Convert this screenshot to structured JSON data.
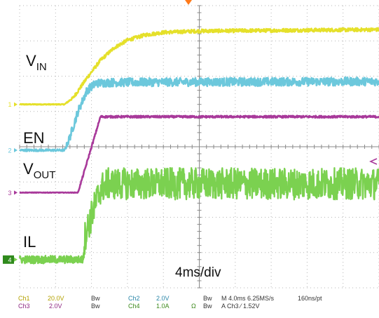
{
  "chart_data": {
    "type": "line",
    "title": "",
    "xlabel": "",
    "ylabel": "",
    "grid": true,
    "timebase_label": "4ms/div",
    "x_unit": "ms",
    "xlim": [
      0,
      40
    ],
    "ylim": [
      -4,
      4
    ],
    "y_unit": "div",
    "series": [
      {
        "name": "V",
        "name_sub": "IN",
        "channel_marker": "1",
        "color": "#e5e02a",
        "noise": 0.05,
        "ground_div": 1.2,
        "x": [
          0,
          5.0,
          6.0,
          7.5,
          9.0,
          10.5,
          12.0,
          14.0,
          16.0,
          20.0,
          30.0,
          40.0
        ],
        "y": [
          1.2,
          1.2,
          1.4,
          1.95,
          2.45,
          2.8,
          3.02,
          3.17,
          3.24,
          3.28,
          3.3,
          3.32
        ]
      },
      {
        "name": "EN",
        "channel_marker": "2",
        "color": "#6cc8dc",
        "noise": 0.12,
        "ground_div": -0.1,
        "x": [
          0,
          5.0,
          5.5,
          6.5,
          7.5,
          8.5,
          10.0,
          14.0,
          40.0
        ],
        "y": [
          -0.1,
          -0.1,
          0.2,
          1.0,
          1.6,
          1.8,
          1.82,
          1.83,
          1.85
        ]
      },
      {
        "name": "V",
        "name_sub": "OUT",
        "channel_marker": "3",
        "color": "#a8399a",
        "noise": 0.03,
        "ground_div": -1.3,
        "x": [
          0,
          6.5,
          9.0,
          40.0
        ],
        "y": [
          -1.3,
          -1.3,
          0.85,
          0.85
        ]
      },
      {
        "name": "IL",
        "channel_marker": "4",
        "color": "#7bd150",
        "noise": 0.45,
        "ground_div": -3.2,
        "x": [
          0,
          7.0,
          7.3,
          9.0,
          9.7,
          12.0,
          40.0
        ],
        "y": [
          -3.2,
          -3.2,
          -2.5,
          -1.2,
          -1.05,
          -1.05,
          -1.05
        ]
      }
    ]
  },
  "status_bar": {
    "ch1": "Ch1",
    "ch1_scale": "20.0V",
    "ch1_bw": "Bw",
    "ch2": "Ch2",
    "ch2_scale": "2.0V",
    "ch2_bw": "Bw",
    "ch3": "Ch3",
    "ch3_scale": "2.0V",
    "ch3_bw": "Bw",
    "ch4": "Ch4",
    "ch4_scale": "1.0A",
    "ch4_ohm": "Ω",
    "ch4_bw": "Bw",
    "horizontal": "M 4.0ms 6.25MS/s",
    "record": "160ns/pt",
    "trigger": "A  Ch3  ⁄  1.52V"
  }
}
